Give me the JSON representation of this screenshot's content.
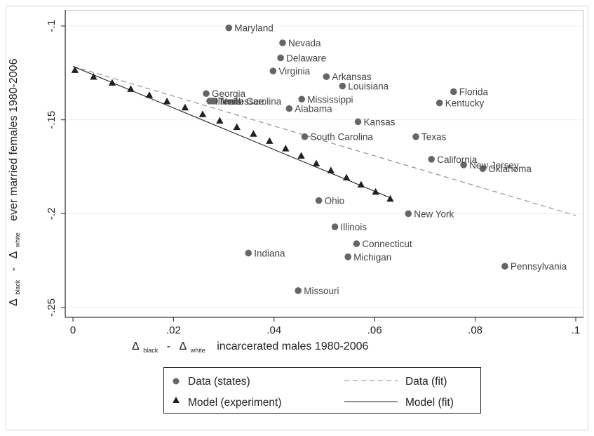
{
  "chart_data": {
    "type": "scatter",
    "title": "",
    "xlabel": {
      "symbol": "Δ",
      "sub1": "black",
      "minus": "-",
      "symbol2": "Δ",
      "sub2": "white",
      "text": "incarcerated males 1980-2006"
    },
    "ylabel": {
      "symbol": "Δ",
      "sub1": "black",
      "minus": "-",
      "symbol2": "Δ",
      "sub2": "white",
      "text": "ever married females 1980-2006"
    },
    "xlim": [
      0,
      0.1
    ],
    "ylim": [
      -0.25,
      -0.1
    ],
    "x_ticks": [
      0,
      0.02,
      0.04,
      0.06,
      0.08,
      0.1
    ],
    "x_tick_labels": [
      "0",
      ".02",
      ".04",
      ".06",
      ".08",
      ".1"
    ],
    "y_ticks": [
      -0.1,
      -0.15,
      -0.2,
      -0.25
    ],
    "y_tick_labels": [
      "-.1",
      "-.15",
      "-.2",
      "-.25"
    ],
    "grid": "horizontal",
    "series": [
      {
        "name": "Data (states)",
        "kind": "scatter",
        "marker": "circle",
        "color": "#666666",
        "points": [
          {
            "label": "Maryland",
            "x": 0.031,
            "y": -0.101
          },
          {
            "label": "Nevada",
            "x": 0.0417,
            "y": -0.109
          },
          {
            "label": "Delaware",
            "x": 0.0413,
            "y": -0.117
          },
          {
            "label": "Virginia",
            "x": 0.0398,
            "y": -0.124
          },
          {
            "label": "Arkansas",
            "x": 0.0504,
            "y": -0.127
          },
          {
            "label": "Louisiana",
            "x": 0.0536,
            "y": -0.132
          },
          {
            "label": "Georgia",
            "x": 0.0265,
            "y": -0.136
          },
          {
            "label": "Illinois",
            "x": 0.0272,
            "y": -0.14
          },
          {
            "label": "Tennessee",
            "x": 0.0278,
            "y": -0.14
          },
          {
            "label": "North Carolina",
            "x": 0.0282,
            "y": -0.14
          },
          {
            "label": "Mississippi",
            "x": 0.0455,
            "y": -0.139
          },
          {
            "label": "Alabama",
            "x": 0.043,
            "y": -0.144
          },
          {
            "label": "Florida",
            "x": 0.0757,
            "y": -0.135
          },
          {
            "label": "Kentucky",
            "x": 0.0729,
            "y": -0.141
          },
          {
            "label": "Kansas",
            "x": 0.0567,
            "y": -0.151
          },
          {
            "label": "South Carolina",
            "x": 0.0461,
            "y": -0.159
          },
          {
            "label": "Texas",
            "x": 0.0682,
            "y": -0.159
          },
          {
            "label": "California",
            "x": 0.0713,
            "y": -0.171
          },
          {
            "label": "New Jersey",
            "x": 0.0777,
            "y": -0.174
          },
          {
            "label": "Oklahoma",
            "x": 0.0815,
            "y": -0.176
          },
          {
            "label": "Ohio",
            "x": 0.0489,
            "y": -0.193
          },
          {
            "label": "New York",
            "x": 0.0667,
            "y": -0.2
          },
          {
            "label": "Illinois",
            "x": 0.0521,
            "y": -0.207
          },
          {
            "label": "Connecticut",
            "x": 0.0564,
            "y": -0.216
          },
          {
            "label": "Indiana",
            "x": 0.0349,
            "y": -0.221
          },
          {
            "label": "Michigan",
            "x": 0.0547,
            "y": -0.223
          },
          {
            "label": "Pennsylvania",
            "x": 0.0859,
            "y": -0.228
          },
          {
            "label": "Missouri",
            "x": 0.0448,
            "y": -0.241
          }
        ]
      },
      {
        "name": "Model (experiment)",
        "kind": "scatter",
        "marker": "triangle",
        "color": "#222222",
        "points": [
          {
            "x": 0.0004,
            "y": -0.1235
          },
          {
            "x": 0.0041,
            "y": -0.1271
          },
          {
            "x": 0.0078,
            "y": -0.1303
          },
          {
            "x": 0.0115,
            "y": -0.1336
          },
          {
            "x": 0.0152,
            "y": -0.1369
          },
          {
            "x": 0.0187,
            "y": -0.1402
          },
          {
            "x": 0.0223,
            "y": -0.1435
          },
          {
            "x": 0.0258,
            "y": -0.1471
          },
          {
            "x": 0.0292,
            "y": -0.1505
          },
          {
            "x": 0.0326,
            "y": -0.1539
          },
          {
            "x": 0.0359,
            "y": -0.1575
          },
          {
            "x": 0.0391,
            "y": -0.1613
          },
          {
            "x": 0.0423,
            "y": -0.1653
          },
          {
            "x": 0.0454,
            "y": -0.1692
          },
          {
            "x": 0.0484,
            "y": -0.1733
          },
          {
            "x": 0.0513,
            "y": -0.177
          },
          {
            "x": 0.0544,
            "y": -0.1808
          },
          {
            "x": 0.0573,
            "y": -0.1846
          },
          {
            "x": 0.0602,
            "y": -0.1884
          },
          {
            "x": 0.0631,
            "y": -0.1921
          }
        ]
      },
      {
        "name": "Data (fit)",
        "kind": "line",
        "style": "dashed",
        "color": "#888888",
        "points": [
          {
            "x": 0,
            "y": -0.1215
          },
          {
            "x": 0.1,
            "y": -0.201
          }
        ]
      },
      {
        "name": "Model (fit)",
        "kind": "line",
        "style": "solid",
        "color": "#222222",
        "points": [
          {
            "x": 0,
            "y": -0.1215
          },
          {
            "x": 0.0631,
            "y": -0.1915
          }
        ]
      }
    ],
    "legend": {
      "placement": "bottom",
      "entries": [
        {
          "label": "Data (states)",
          "symbol": "circle"
        },
        {
          "label": "Data (fit)",
          "symbol": "dashed-line"
        },
        {
          "label": "Model (experiment)",
          "symbol": "triangle"
        },
        {
          "label": "Model (fit)",
          "symbol": "solid-line"
        }
      ]
    }
  }
}
